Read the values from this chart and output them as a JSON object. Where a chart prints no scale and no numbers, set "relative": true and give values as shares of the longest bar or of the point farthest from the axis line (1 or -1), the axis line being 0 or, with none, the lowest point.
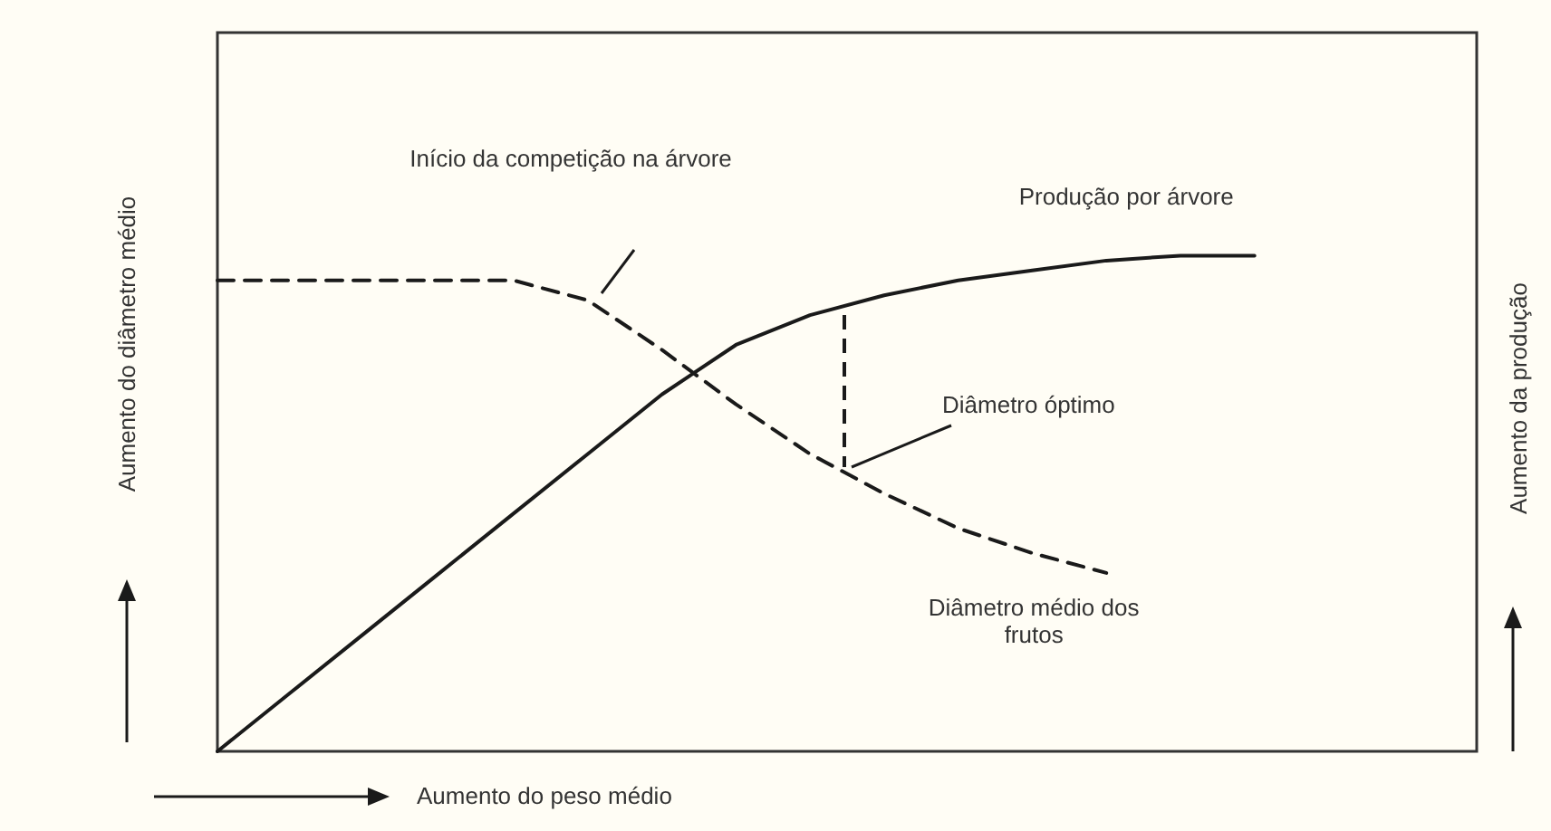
{
  "chart_data": {
    "type": "line",
    "relative": true,
    "xlabel": "Aumento do peso médio",
    "ylabel": "Aumento do diâmetro médio",
    "y2label": "Aumento da produção",
    "categories": [
      null,
      null,
      null,
      null,
      null,
      null,
      null,
      null,
      null,
      null,
      null,
      null,
      null,
      null,
      null,
      null,
      null,
      null
    ],
    "series": [
      {
        "name": "Produção por árvore",
        "color": "#1a1a1a",
        "line_style": "solid",
        "values": [
          0,
          0.12,
          0.24,
          0.36,
          0.48,
          0.6,
          0.72,
          0.82,
          0.88,
          0.92,
          0.95,
          0.97,
          0.99,
          1.0,
          1.0,
          null,
          null,
          null
        ]
      },
      {
        "name": "Diâmetro médio dos frutos",
        "color": "#1a1a1a",
        "line_style": "dashed",
        "values": [
          0.95,
          0.95,
          0.95,
          0.95,
          0.95,
          0.91,
          0.81,
          0.7,
          0.6,
          0.52,
          0.45,
          0.4,
          0.36,
          null,
          null,
          null,
          null,
          null
        ]
      }
    ],
    "annotations": [
      "Início da competição na árvore",
      "Diâmetro óptimo"
    ],
    "grid": false,
    "legend": false,
    "marker": "none"
  }
}
